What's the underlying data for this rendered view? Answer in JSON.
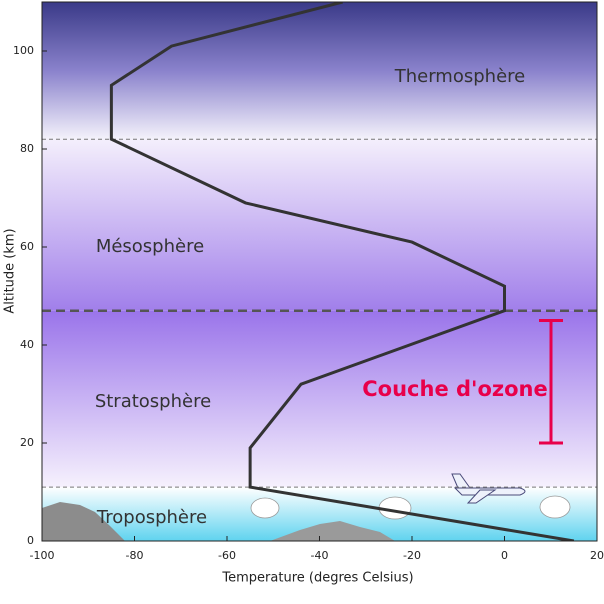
{
  "chart_data": {
    "type": "line",
    "x_label": "Temperature (degres Celsius)",
    "y_label": "Altitude (km)",
    "x": [
      15,
      -55,
      -55,
      -44,
      0,
      0,
      -20,
      -56,
      -85,
      -85,
      -72,
      -35
    ],
    "values": [
      0,
      11,
      19,
      32,
      47,
      52,
      61,
      69,
      82,
      93,
      101,
      110
    ],
    "color": "#333333",
    "xlim": [
      -100,
      20
    ],
    "xticks": [
      -100,
      -80,
      -60,
      -40,
      -20,
      0,
      20
    ],
    "ylim": [
      0,
      110
    ],
    "yticks": [
      0,
      20,
      40,
      60,
      80,
      100
    ],
    "layer_boundaries": [
      11,
      47,
      82
    ],
    "layer_names": [
      "Troposphère",
      "Stratosphère",
      "Mésosphère",
      "Thermosphère"
    ],
    "ozone": {
      "label": "Couche d'ozone",
      "range": [
        20,
        45
      ],
      "color": "#e8004a"
    }
  }
}
